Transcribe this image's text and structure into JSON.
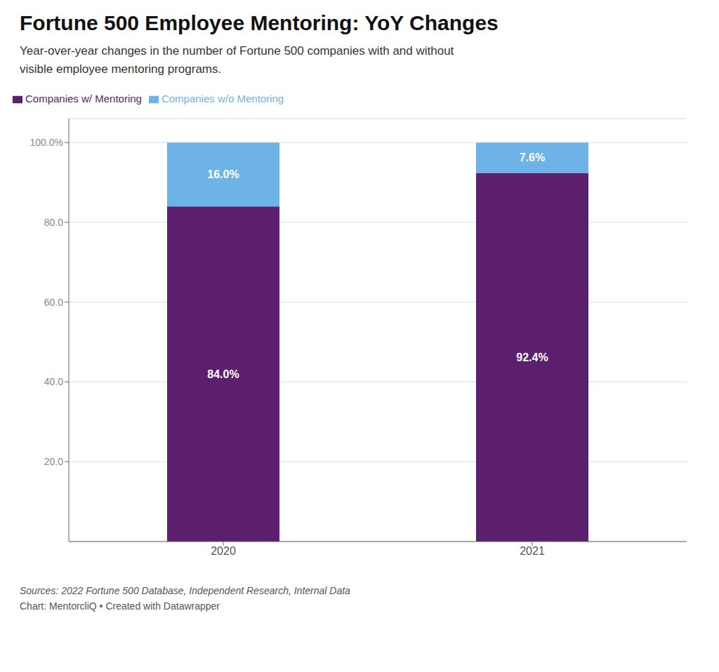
{
  "chart_data": {
    "type": "bar",
    "title": "Fortune 500 Employee Mentoring: YoY Changes",
    "subtitle": "Year-over-year changes in the number of Fortune 500 companies with and without\nvisible employee mentoring programs.",
    "categories": [
      "2020",
      "2021"
    ],
    "series": [
      {
        "name": "Companies w/ Mentoring",
        "color": "#5b1f6e",
        "values": [
          84.0,
          92.4
        ],
        "value_labels": [
          "84.0%",
          "92.4%"
        ]
      },
      {
        "name": "Companies w/o Mentoring",
        "color": "#6eb3e8",
        "values": [
          16.0,
          7.6
        ],
        "value_labels": [
          "16.0%",
          "7.6%"
        ]
      }
    ],
    "stacked": true,
    "data_labels": true,
    "ylim": [
      0,
      106
    ],
    "yticks": [
      {
        "value": 20.0,
        "label": "20.0"
      },
      {
        "value": 40.0,
        "label": "40.0"
      },
      {
        "value": 60.0,
        "label": "60.0"
      },
      {
        "value": 80.0,
        "label": "80.0"
      },
      {
        "value": 100.0,
        "label": "100.0%"
      }
    ],
    "grid": true,
    "legend": "top-left",
    "annotations": [
      "Sources: 2022 Fortune 500 Database, Independent Research, Internal Data",
      "Chart: MentorcliQ • Created with Datawrapper"
    ]
  }
}
